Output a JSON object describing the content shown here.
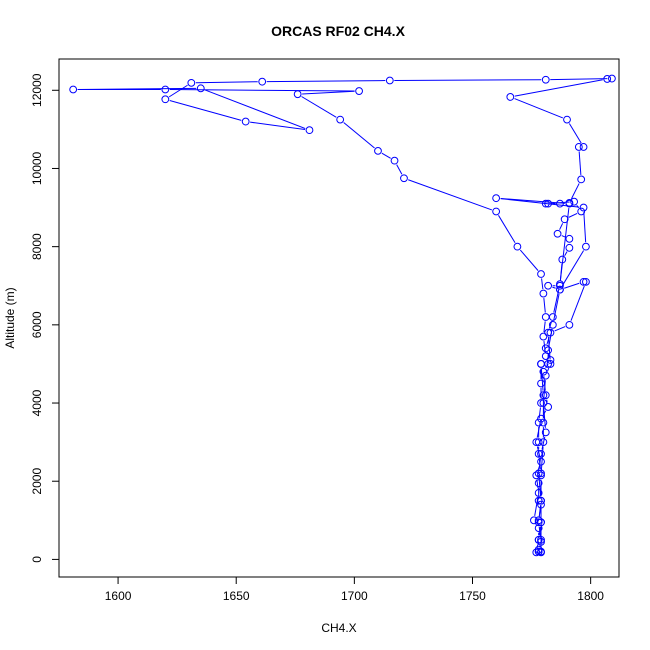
{
  "chart_data": {
    "type": "line",
    "title": "ORCAS RF02 CH4.X",
    "xlabel": "CH4.X",
    "ylabel": "Altitude (m)",
    "xlim": [
      1575,
      1812
    ],
    "ylim": [
      -450,
      12800
    ],
    "xticks": [
      1600,
      1650,
      1700,
      1750,
      1800
    ],
    "yticks": [
      0,
      2000,
      4000,
      6000,
      8000,
      10000,
      12000
    ],
    "color": "#0000ff",
    "marker": "open-circle",
    "grid": false,
    "series": [
      {
        "name": "",
        "points": [
          [
            1778,
            200
          ],
          [
            1779,
            200
          ],
          [
            1778,
            250
          ],
          [
            1779,
            500
          ],
          [
            1778,
            500
          ],
          [
            1779,
            950
          ],
          [
            1778,
            1000
          ],
          [
            1779,
            1400
          ],
          [
            1778,
            1500
          ],
          [
            1778,
            1950
          ],
          [
            1779,
            2200
          ],
          [
            1778,
            2700
          ],
          [
            1778,
            3000
          ],
          [
            1778,
            3500
          ],
          [
            1779,
            4000
          ],
          [
            1779,
            4500
          ],
          [
            1779,
            5000
          ],
          [
            1781,
            5200
          ],
          [
            1780,
            5700
          ],
          [
            1781,
            6200
          ],
          [
            1780,
            6800
          ],
          [
            1779,
            7300
          ],
          [
            1769,
            8000
          ],
          [
            1760,
            8900
          ],
          [
            1721,
            9750
          ],
          [
            1717,
            10200
          ],
          [
            1710,
            10450
          ],
          [
            1694,
            11250
          ],
          [
            1676,
            11900
          ],
          [
            1702,
            11980
          ],
          [
            1620,
            12020
          ],
          [
            1581,
            12020
          ],
          [
            1635,
            12050
          ],
          [
            1681,
            10980
          ],
          [
            1654,
            11200
          ],
          [
            1620,
            11770
          ],
          [
            1631,
            12190
          ],
          [
            1661,
            12220
          ],
          [
            1715,
            12250
          ],
          [
            1781,
            12270
          ],
          [
            1809,
            12300
          ],
          [
            1807,
            12290
          ],
          [
            1766,
            11830
          ],
          [
            1790,
            11250
          ],
          [
            1797,
            10550
          ],
          [
            1795,
            10550
          ],
          [
            1796,
            9720
          ],
          [
            1791,
            9120
          ],
          [
            1787,
            9100
          ],
          [
            1782,
            9100
          ],
          [
            1781,
            9100
          ],
          [
            1793,
            9150
          ],
          [
            1796,
            8900
          ],
          [
            1789,
            8700
          ],
          [
            1786,
            8330
          ],
          [
            1791,
            8200
          ],
          [
            1791,
            7970
          ],
          [
            1788,
            7670
          ],
          [
            1787,
            7000
          ],
          [
            1782,
            7000
          ],
          [
            1787,
            6900
          ],
          [
            1798,
            8000
          ],
          [
            1797,
            9000
          ],
          [
            1760,
            9240
          ],
          [
            1791,
            9100
          ],
          [
            1787,
            7040
          ],
          [
            1784,
            6200
          ],
          [
            1782,
            5800
          ],
          [
            1783,
            5000
          ],
          [
            1781,
            4700
          ],
          [
            1780,
            4000
          ],
          [
            1781,
            3250
          ],
          [
            1779,
            2700
          ],
          [
            1778,
            2200
          ],
          [
            1779,
            1500
          ],
          [
            1778,
            950
          ],
          [
            1779,
            450
          ],
          [
            1778,
            200
          ]
        ]
      },
      {
        "name": "",
        "points": [
          [
            1798,
            7100
          ],
          [
            1791,
            6000
          ],
          [
            1783,
            5800
          ],
          [
            1781,
            5400
          ],
          [
            1783,
            5100
          ],
          [
            1780,
            4800
          ],
          [
            1781,
            4200
          ],
          [
            1782,
            3900
          ],
          [
            1779,
            3600
          ],
          [
            1777,
            3000
          ],
          [
            1779,
            2500
          ],
          [
            1777,
            2150
          ],
          [
            1778,
            1700
          ],
          [
            1776,
            1000
          ],
          [
            1778,
            800
          ],
          [
            1778,
            500
          ],
          [
            1777,
            180
          ],
          [
            1779,
            180
          ],
          [
            1779,
            950
          ],
          [
            1779,
            1500
          ],
          [
            1779,
            2150
          ],
          [
            1780,
            3000
          ],
          [
            1780,
            3500
          ],
          [
            1780,
            4200
          ],
          [
            1779,
            5000
          ],
          [
            1782,
            5000
          ],
          [
            1782,
            5350
          ],
          [
            1784,
            6000
          ],
          [
            1787,
            6900
          ],
          [
            1797,
            7100
          ]
        ]
      }
    ]
  }
}
